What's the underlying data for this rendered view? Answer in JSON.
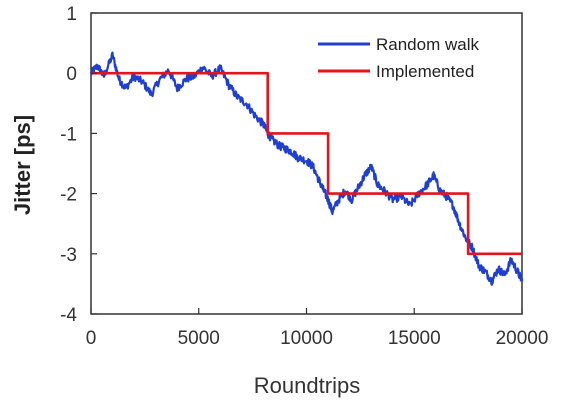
{
  "chart_data": {
    "type": "line",
    "title": "",
    "xlabel": "Roundtrips",
    "ylabel": "Jitter [ps]",
    "xlim": [
      0,
      20000
    ],
    "ylim": [
      -4,
      1
    ],
    "xticks": [
      0,
      5000,
      10000,
      15000,
      20000
    ],
    "xtick_labels": [
      "0",
      "5000",
      "10000",
      "15000",
      "20000"
    ],
    "yticks": [
      1,
      0,
      -1,
      -2,
      -3,
      -4
    ],
    "ytick_labels": [
      "1",
      "0",
      "-1",
      "-2",
      "-3",
      "-4"
    ],
    "grid": false,
    "legend_position": "top-right",
    "series": [
      {
        "name": "Random walk",
        "color": "#1f3fd0",
        "x": [
          0,
          300,
          600,
          1000,
          1300,
          1600,
          2000,
          2400,
          2800,
          3200,
          3600,
          4000,
          4400,
          4800,
          5200,
          5600,
          6000,
          6400,
          6800,
          7200,
          7600,
          8000,
          8200,
          8400,
          8700,
          9000,
          9300,
          9600,
          10000,
          10300,
          10600,
          10800,
          11000,
          11200,
          11500,
          11800,
          12100,
          12400,
          12700,
          13000,
          13300,
          13600,
          14000,
          14400,
          14800,
          15200,
          15600,
          15900,
          16200,
          16500,
          16800,
          17100,
          17400,
          17700,
          18000,
          18300,
          18600,
          18900,
          19200,
          19500,
          19800,
          20000
        ],
        "y": [
          0.0,
          0.12,
          -0.05,
          0.3,
          -0.1,
          -0.25,
          -0.05,
          -0.15,
          -0.35,
          -0.1,
          0.05,
          -0.25,
          -0.1,
          -0.05,
          0.1,
          -0.05,
          0.08,
          -0.2,
          -0.4,
          -0.5,
          -0.7,
          -0.85,
          -1.0,
          -1.1,
          -1.2,
          -1.25,
          -1.3,
          -1.4,
          -1.45,
          -1.55,
          -1.8,
          -1.95,
          -2.1,
          -2.3,
          -2.1,
          -1.95,
          -2.1,
          -1.9,
          -1.7,
          -1.55,
          -1.85,
          -1.95,
          -2.1,
          -2.05,
          -2.2,
          -2.0,
          -1.85,
          -1.7,
          -1.95,
          -2.05,
          -2.2,
          -2.5,
          -2.75,
          -2.9,
          -3.2,
          -3.3,
          -3.45,
          -3.25,
          -3.35,
          -3.1,
          -3.3,
          -3.45
        ]
      },
      {
        "name": "Implemented",
        "color": "#e3141b",
        "x": [
          0,
          8200,
          8200,
          11000,
          11000,
          17500,
          17500,
          20000
        ],
        "y": [
          0,
          0,
          -1,
          -1,
          -2,
          -2,
          -3,
          -3
        ]
      }
    ]
  }
}
